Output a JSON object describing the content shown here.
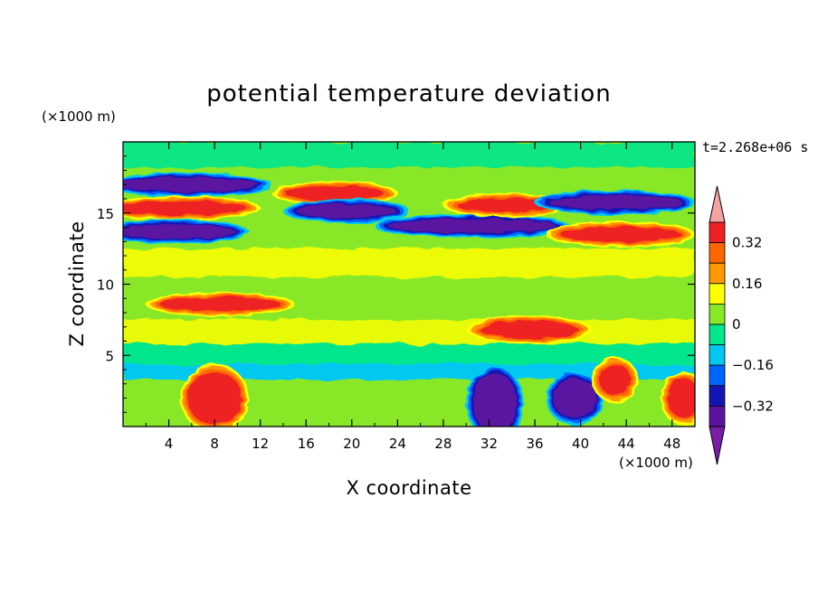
{
  "chart_data": {
    "type": "heatmap",
    "title": "potential temperature deviation",
    "xlabel": "X coordinate",
    "ylabel": "Z coordinate",
    "x_unit": "(×1000 m)",
    "y_unit": "(×1000 m)",
    "time_label": "t=2.268e+06 s",
    "xlim": [
      0,
      50
    ],
    "ylim": [
      0,
      20
    ],
    "x_ticks": [
      4,
      8,
      12,
      16,
      20,
      24,
      28,
      32,
      36,
      40,
      44,
      48
    ],
    "y_ticks": [
      5,
      10,
      15
    ],
    "colorbar": {
      "levels": [
        -0.4,
        -0.32,
        -0.24,
        -0.16,
        -0.08,
        0,
        0.08,
        0.16,
        0.24,
        0.32,
        0.4
      ],
      "tick_labels": [
        "0.32",
        "0.16",
        "0",
        "−0.16",
        "−0.32"
      ],
      "tick_values": [
        0.32,
        0.16,
        0,
        -0.16,
        -0.32
      ],
      "colors_high_to_low": [
        "#f4a3a3",
        "#ee2222",
        "#ff6600",
        "#ff9900",
        "#ffff00",
        "#88e828",
        "#00e68c",
        "#00c8f0",
        "#0064ff",
        "#1414b4",
        "#5a14a0",
        "#7a1ea8"
      ]
    },
    "features": [
      {
        "shape": "band",
        "x": [
          0,
          11
        ],
        "z": [
          16.9,
          17.1
        ],
        "value": -0.34
      },
      {
        "shape": "band",
        "x": [
          0,
          10
        ],
        "z": [
          15.2,
          15.5
        ],
        "value": 0.38
      },
      {
        "shape": "band",
        "x": [
          0,
          9
        ],
        "z": [
          13.6,
          13.8
        ],
        "value": -0.34
      },
      {
        "shape": "band",
        "x": [
          15,
          22
        ],
        "z": [
          16.2,
          16.6
        ],
        "value": 0.36
      },
      {
        "shape": "band",
        "x": [
          16,
          23
        ],
        "z": [
          15.0,
          15.3
        ],
        "value": -0.38
      },
      {
        "shape": "band",
        "x": [
          24,
          37
        ],
        "z": [
          13.9,
          14.3
        ],
        "value": -0.34
      },
      {
        "shape": "band",
        "x": [
          30,
          37
        ],
        "z": [
          15.4,
          15.7
        ],
        "value": 0.36
      },
      {
        "shape": "band",
        "x": [
          38,
          48
        ],
        "z": [
          15.5,
          16.0
        ],
        "value": -0.38
      },
      {
        "shape": "band",
        "x": [
          39,
          48
        ],
        "z": [
          13.2,
          13.8
        ],
        "value": 0.38
      },
      {
        "shape": "band",
        "x": [
          4,
          13
        ],
        "z": [
          8.4,
          8.8
        ],
        "value": 0.34
      },
      {
        "shape": "band",
        "x": [
          32,
          39
        ],
        "z": [
          6.4,
          7.2
        ],
        "value": 0.34
      },
      {
        "shape": "column",
        "x": [
          6,
          10
        ],
        "z": [
          0.5,
          3.5
        ],
        "value": 0.38
      },
      {
        "shape": "column",
        "x": [
          31,
          34
        ],
        "z": [
          0,
          3.4
        ],
        "value": -0.36
      },
      {
        "shape": "column",
        "x": [
          38,
          41
        ],
        "z": [
          1.0,
          3.0
        ],
        "value": -0.36
      },
      {
        "shape": "column",
        "x": [
          42,
          44
        ],
        "z": [
          2.6,
          4.0
        ],
        "value": 0.38
      },
      {
        "shape": "column",
        "x": [
          48,
          50
        ],
        "z": [
          1.0,
          3.0
        ],
        "value": 0.38
      }
    ]
  }
}
